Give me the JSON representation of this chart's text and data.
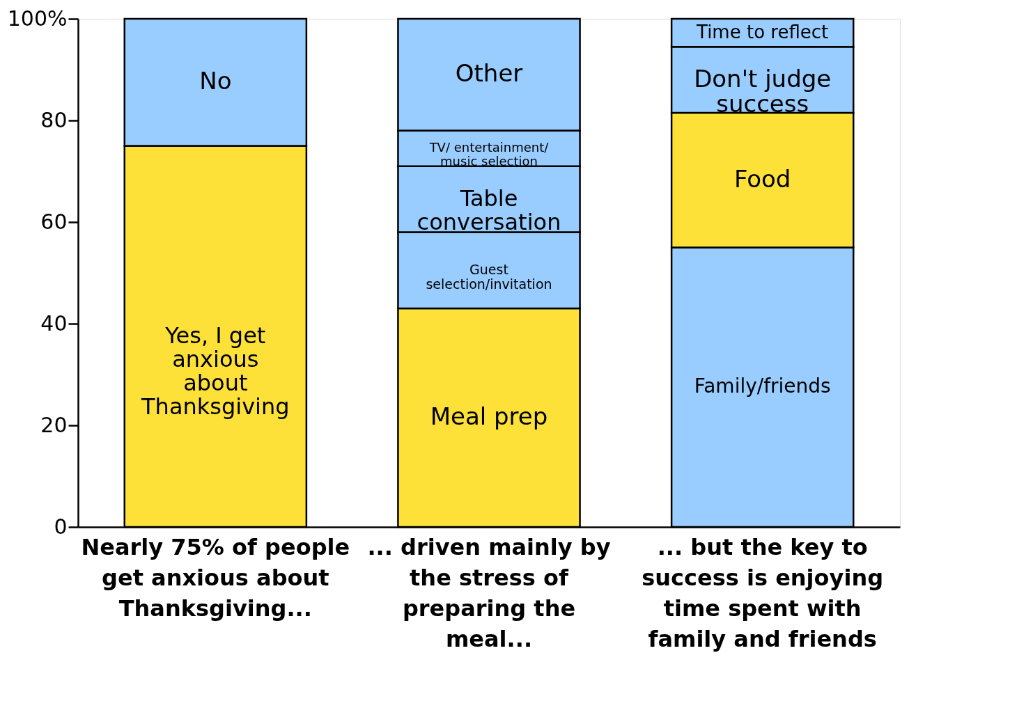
{
  "chart_data": {
    "type": "bar",
    "stacked": true,
    "categories": [
      "Nearly 75% of people get anxious about Thanksgiving...",
      "... driven mainly by the stress of preparing the meal...",
      "... but the key to success is enjoying time spent with family and friends"
    ],
    "series": [
      {
        "name": "Yes, I get anxious about Thanksgiving",
        "color": "#fde138",
        "values": [
          75,
          null,
          null
        ]
      },
      {
        "name": "No",
        "color": "#99ccff",
        "values": [
          25,
          null,
          null
        ]
      },
      {
        "name": "Meal prep",
        "color": "#fde138",
        "values": [
          null,
          43,
          null
        ]
      },
      {
        "name": "Guest selection/invitation",
        "color": "#99ccff",
        "values": [
          null,
          15,
          null
        ]
      },
      {
        "name": "Table conversation",
        "color": "#99ccff",
        "values": [
          null,
          13,
          null
        ]
      },
      {
        "name": "TV/ entertainment/ music selection",
        "color": "#99ccff",
        "values": [
          null,
          7,
          null
        ]
      },
      {
        "name": "Other",
        "color": "#99ccff",
        "values": [
          null,
          22,
          null
        ]
      },
      {
        "name": "Family/friends",
        "color": "#99ccff",
        "values": [
          null,
          null,
          55
        ]
      },
      {
        "name": "Food",
        "color": "#fde138",
        "values": [
          null,
          null,
          26.5
        ]
      },
      {
        "name": "Don't judge success",
        "color": "#99ccff",
        "values": [
          null,
          null,
          13
        ]
      },
      {
        "name": "Time to reflect",
        "color": "#99ccff",
        "values": [
          null,
          null,
          5.5
        ]
      }
    ],
    "ylim": [
      0,
      100
    ],
    "yticks": [
      0,
      20,
      40,
      60,
      80,
      {
        "value": 100,
        "label": "100%"
      }
    ],
    "grid": false
  }
}
